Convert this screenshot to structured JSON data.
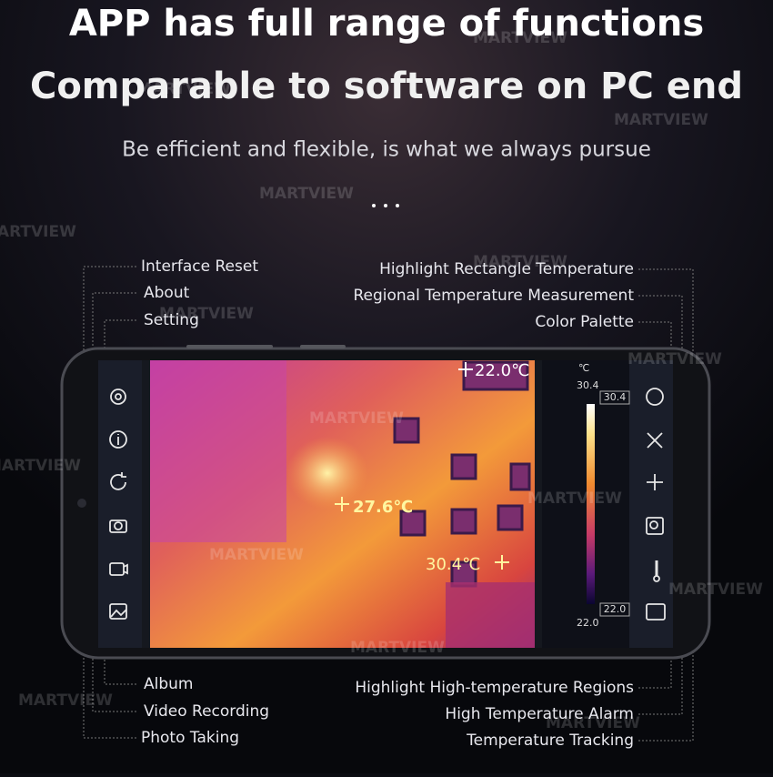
{
  "header": {
    "title_lines": [
      "APP has full range of functions",
      "Comparable to software on PC end"
    ],
    "subtitle": "Be efficient and flexible, is what we always pursue"
  },
  "left_labels": [
    "Interface Reset",
    "About",
    "Setting",
    "Album",
    "Video Recording",
    "Photo Taking"
  ],
  "right_labels": [
    "Highlight Rectangle Temperature",
    "Regional Temperature Measurement",
    "Color Palette",
    "Highlight High-temperature Regions",
    "High Temperature Alarm",
    "Temperature Tracking"
  ],
  "thermal": {
    "readings": [
      "22.0℃",
      "27.6℃",
      "30.4℃"
    ],
    "scale": {
      "unit": "℃",
      "max": "30.4",
      "min": "22.0"
    }
  },
  "watermark": "MARTVIEW"
}
